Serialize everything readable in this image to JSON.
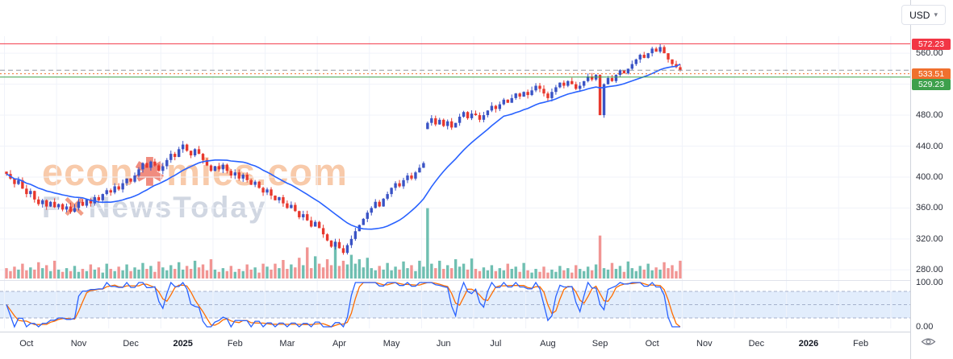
{
  "toolbar": {
    "currency": "USD",
    "caret": "▾"
  },
  "watermark": {
    "line1_pre": "econ",
    "line1_sym": "✱",
    "line1_post": "mies.com",
    "line2_pre": "F",
    "line2_sym": "✕",
    "line2_post": "NewsToday"
  },
  "axis": {
    "price_ticks": [
      560,
      480,
      440,
      400,
      360,
      320,
      280
    ],
    "osc_ticks": [
      100,
      0
    ],
    "x_labels": [
      {
        "label": "Oct",
        "bold": false
      },
      {
        "label": "Nov",
        "bold": false
      },
      {
        "label": "Dec",
        "bold": false
      },
      {
        "label": "2025",
        "bold": true
      },
      {
        "label": "Feb",
        "bold": false
      },
      {
        "label": "Mar",
        "bold": false
      },
      {
        "label": "Apr",
        "bold": false
      },
      {
        "label": "May",
        "bold": false
      },
      {
        "label": "Jun",
        "bold": false
      },
      {
        "label": "Jul",
        "bold": false
      },
      {
        "label": "Aug",
        "bold": false
      },
      {
        "label": "Sep",
        "bold": false
      },
      {
        "label": "Oct",
        "bold": false
      },
      {
        "label": "Nov",
        "bold": false
      },
      {
        "label": "Dec",
        "bold": false
      },
      {
        "label": "2026",
        "bold": true
      },
      {
        "label": "Feb",
        "bold": false
      }
    ]
  },
  "chart_data": {
    "type": "candlestick",
    "currency": "USD",
    "price_range": [
      272,
      582
    ],
    "levels": [
      {
        "value": 572.23,
        "label": "572.23",
        "color": "#f23645",
        "style": "solid"
      },
      {
        "value": 538.0,
        "label": null,
        "color": "#9598a1",
        "style": "dashed"
      },
      {
        "value": 533.51,
        "label": "533.51",
        "color": "#f0702e",
        "style": "dotted"
      },
      {
        "value": 529.23,
        "label": "529.23",
        "color": "#3da04c",
        "style": "solid"
      }
    ],
    "ma_period": 20,
    "gap_up_indices": [
      105
    ],
    "osc": {
      "band": [
        20,
        80
      ],
      "mid": 50,
      "period": 7
    },
    "colors": {
      "up": "#3a53c5",
      "down": "#e8382d",
      "ma": "#2962ff",
      "vol_up": "#5fb8a8",
      "vol_down": "#ef8a87",
      "osc_k": "#2962ff",
      "osc_d": "#ff6d00",
      "band_fill": "#dbe9fb",
      "band_line": "#a5b1cc"
    },
    "closes": [
      404,
      398,
      391,
      396,
      385,
      378,
      382,
      371,
      365,
      370,
      362,
      368,
      361,
      365,
      358,
      362,
      355,
      360,
      368,
      363,
      371,
      366,
      374,
      370,
      378,
      383,
      380,
      388,
      384,
      392,
      398,
      394,
      402,
      410,
      418,
      412,
      420,
      415,
      408,
      414,
      422,
      430,
      426,
      436,
      442,
      434,
      428,
      436,
      430,
      422,
      415,
      408,
      414,
      410,
      416,
      408,
      402,
      406,
      398,
      403,
      396,
      390,
      394,
      386,
      380,
      384,
      376,
      370,
      374,
      366,
      360,
      364,
      356,
      348,
      352,
      344,
      336,
      342,
      334,
      326,
      318,
      310,
      316,
      308,
      302,
      312,
      320,
      330,
      338,
      346,
      354,
      360,
      368,
      362,
      372,
      378,
      386,
      392,
      388,
      396,
      402,
      398,
      406,
      412,
      418,
      470,
      476,
      468,
      474,
      466,
      472,
      464,
      470,
      478,
      484,
      476,
      482,
      480,
      474,
      480,
      486,
      492,
      488,
      494,
      500,
      496,
      502,
      508,
      504,
      510,
      506,
      512,
      518,
      514,
      508,
      502,
      510,
      516,
      522,
      518,
      524,
      520,
      514,
      518,
      524,
      530,
      526,
      532,
      480,
      520,
      528,
      524,
      532,
      538,
      534,
      540,
      546,
      552,
      558,
      554,
      560,
      566,
      562,
      568,
      560,
      552,
      546,
      542,
      538
    ],
    "volumes": [
      14,
      10,
      16,
      12,
      20,
      11,
      15,
      12,
      22,
      14,
      18,
      10,
      24,
      12,
      9,
      14,
      10,
      17,
      9,
      13,
      10,
      19,
      12,
      15,
      8,
      20,
      13,
      10,
      16,
      11,
      19,
      10,
      15,
      12,
      21,
      13,
      17,
      9,
      23,
      15,
      11,
      18,
      13,
      22,
      12,
      17,
      13,
      24,
      15,
      19,
      11,
      26,
      12,
      9,
      14,
      10,
      17,
      9,
      13,
      10,
      19,
      12,
      15,
      8,
      20,
      16,
      12,
      20,
      14,
      25,
      13,
      19,
      15,
      28,
      18,
      42,
      14,
      30,
      20,
      15,
      26,
      18,
      50,
      17,
      24,
      19,
      32,
      20,
      26,
      15,
      28,
      14,
      11,
      17,
      12,
      21,
      11,
      16,
      12,
      23,
      14,
      18,
      10,
      24,
      16,
      95,
      20,
      14,
      24,
      13,
      18,
      14,
      26,
      16,
      20,
      12,
      27,
      13,
      10,
      15,
      11,
      18,
      10,
      14,
      11,
      20,
      13,
      16,
      9,
      21,
      11,
      8,
      13,
      9,
      16,
      8,
      12,
      9,
      17,
      11,
      14,
      8,
      18,
      13,
      10,
      16,
      11,
      19,
      58,
      14,
      12,
      21,
      13,
      17,
      9,
      23,
      14,
      10,
      17,
      12,
      20,
      11,
      15,
      12,
      22,
      14,
      18,
      10,
      24
    ]
  }
}
